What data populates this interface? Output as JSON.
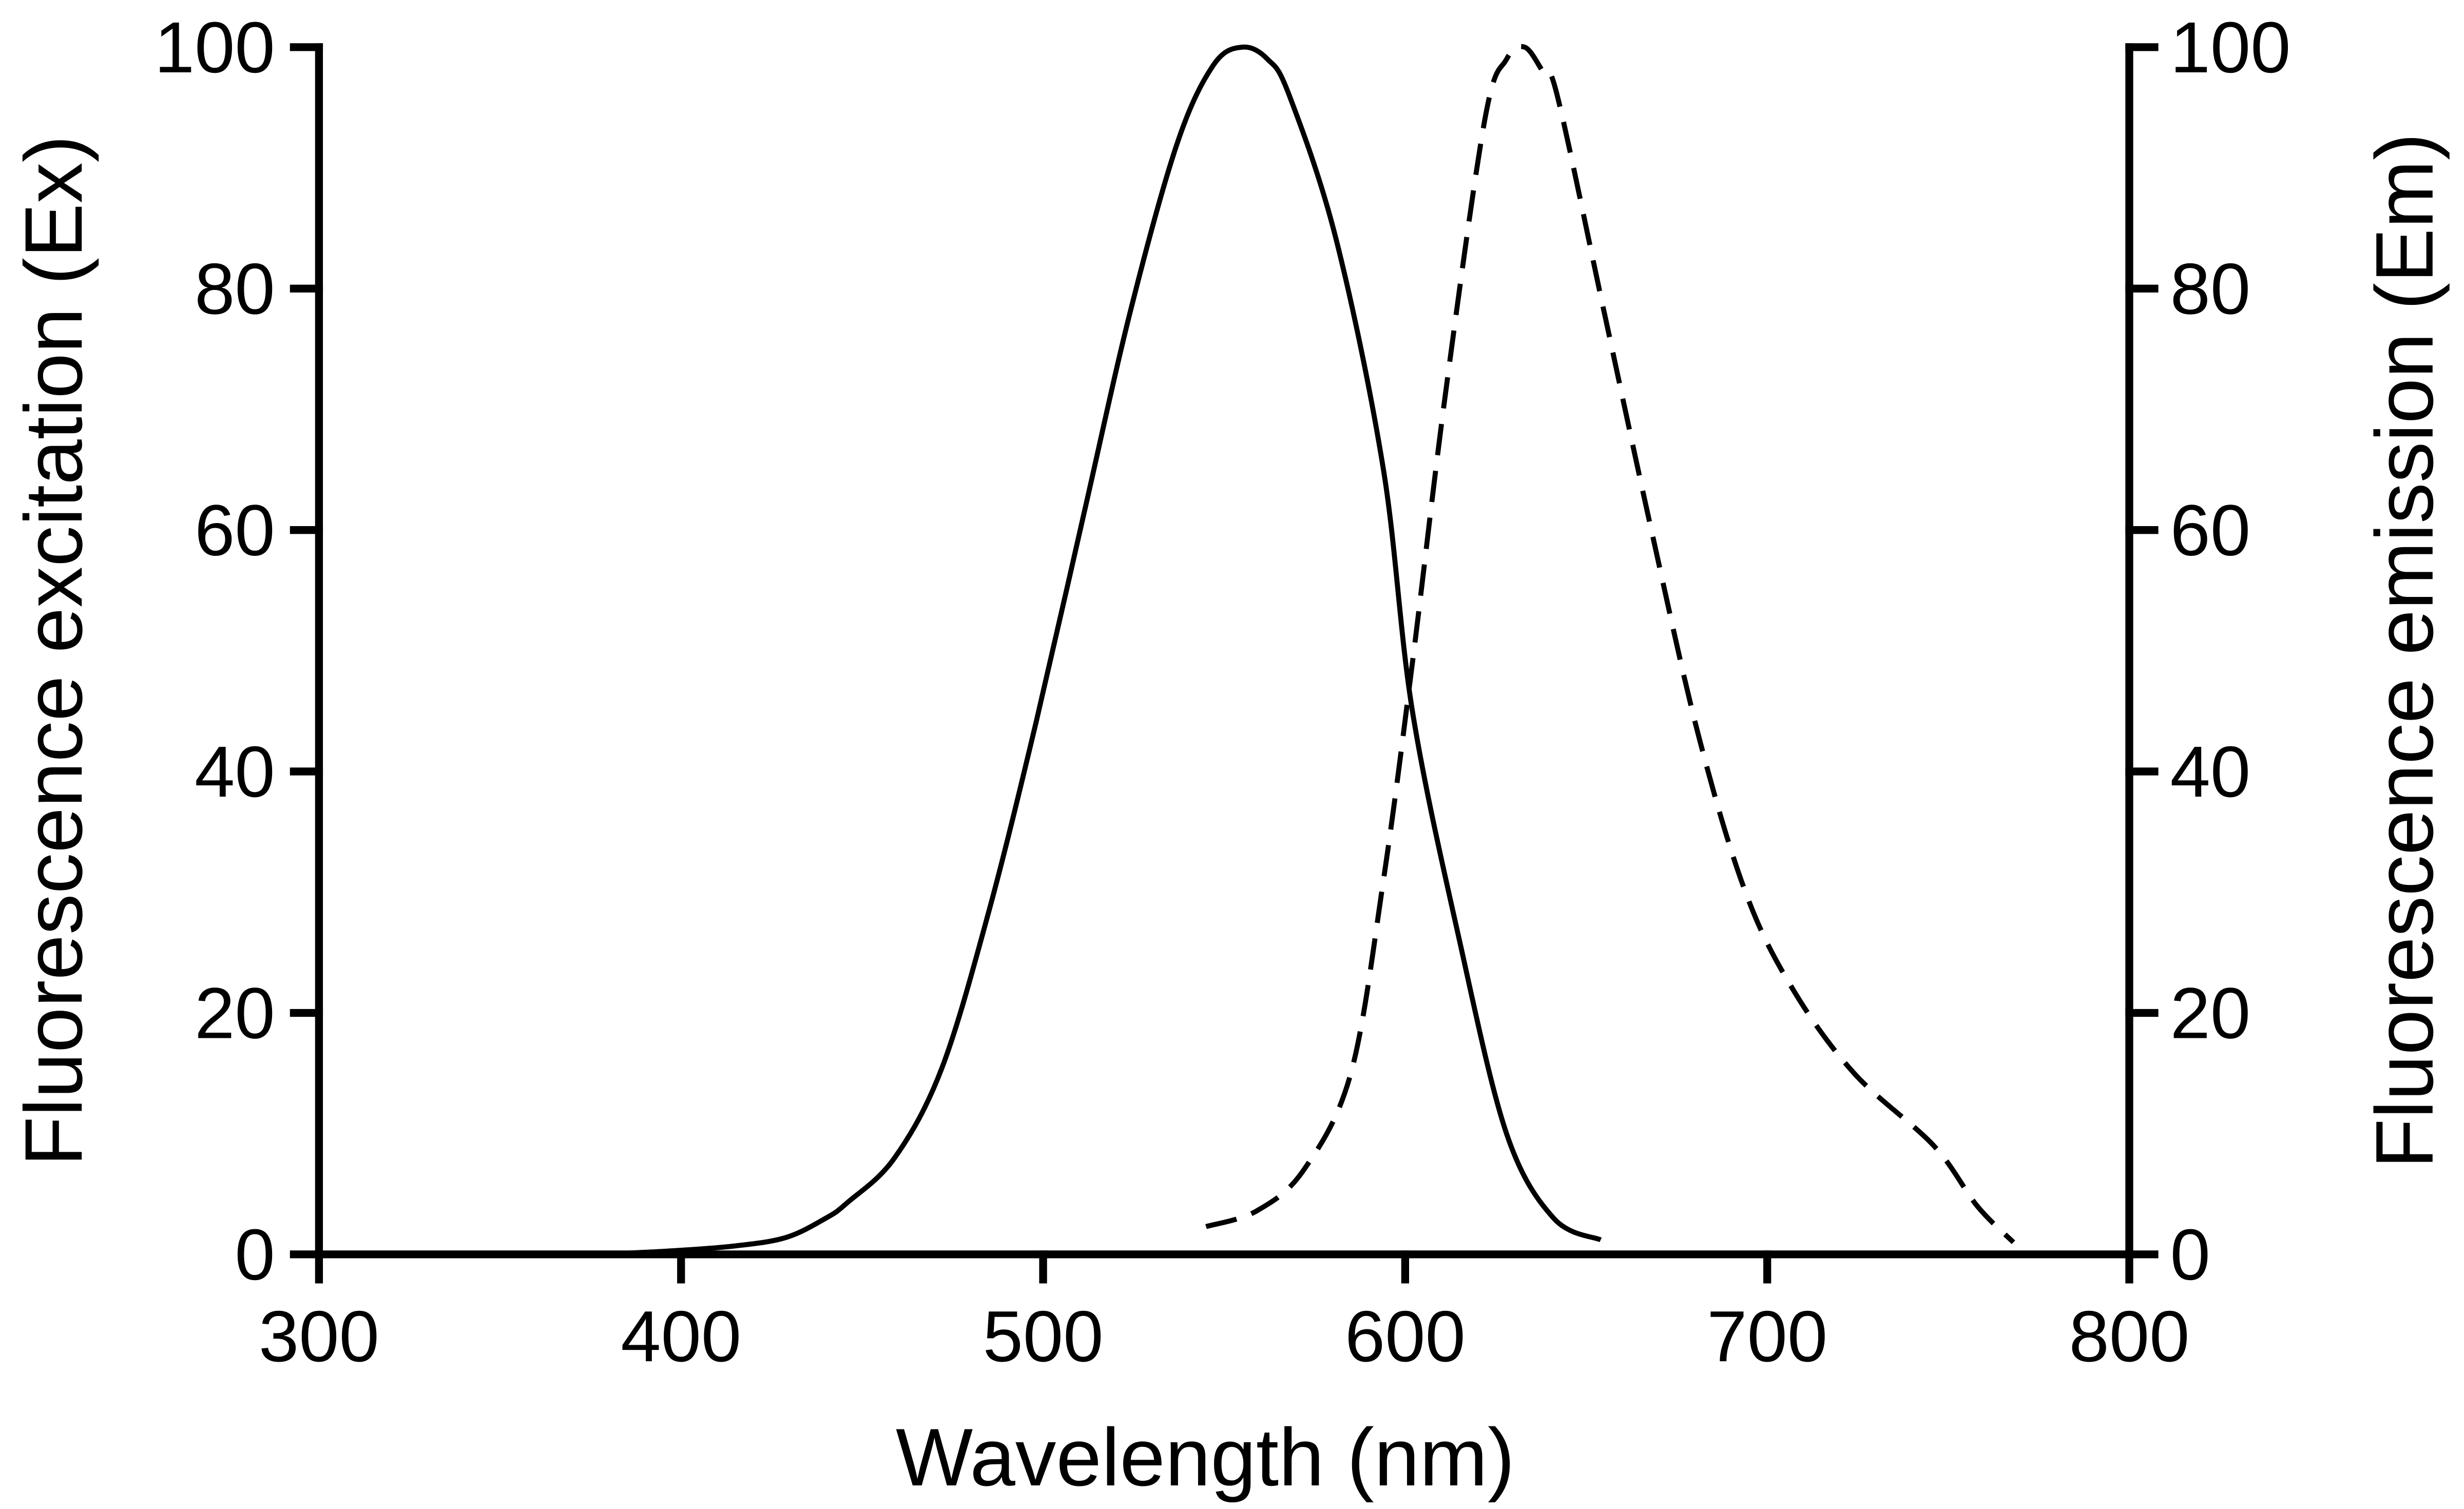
{
  "chart_data": {
    "type": "line",
    "xlabel": "Wavelength (nm)",
    "ylabel_left": "Fluorescence excitation (Ex)",
    "ylabel_right": "Fluorescence emission (Em)",
    "xlim": [
      300,
      800
    ],
    "ylim_left": [
      0,
      100
    ],
    "ylim_right": [
      0,
      100
    ],
    "x_ticks": [
      "300",
      "400",
      "500",
      "600",
      "700",
      "800"
    ],
    "y_ticks_left": [
      "0",
      "20",
      "40",
      "60",
      "80",
      "100"
    ],
    "y_ticks_right": [
      "0",
      "20",
      "40",
      "60",
      "80",
      "100"
    ],
    "grid": false,
    "color": "#000000",
    "series": [
      {
        "axis": "left",
        "style": "solid",
        "x": [
          385,
          398,
          415,
          429,
          440,
          446,
          459,
          472,
          485,
          498,
          511,
          524,
          537,
          547,
          555,
          562,
          568,
          581,
          594,
          602,
          615,
          628,
          641,
          654
        ],
        "y": [
          0.1,
          0.3,
          0.7,
          1.4,
          3,
          4.3,
          8,
          15.4,
          28.4,
          44,
          61,
          78,
          92,
          98.5,
          100,
          99,
          96,
          84,
          65,
          45,
          26,
          10,
          3,
          1.2
        ]
      },
      {
        "axis": "right",
        "style": "dashed",
        "x": [
          545,
          559,
          572,
          585,
          594,
          602,
          611,
          622,
          628,
          633,
          638,
          642,
          655,
          668,
          681,
          694,
          707,
          724,
          746,
          758,
          768
        ],
        "y": [
          2.3,
          3.6,
          7,
          15,
          31,
          49,
          71,
          94,
          99,
          100,
          98,
          96,
          78,
          60,
          43,
          30,
          22,
          15,
          9,
          4,
          1
        ]
      }
    ]
  }
}
